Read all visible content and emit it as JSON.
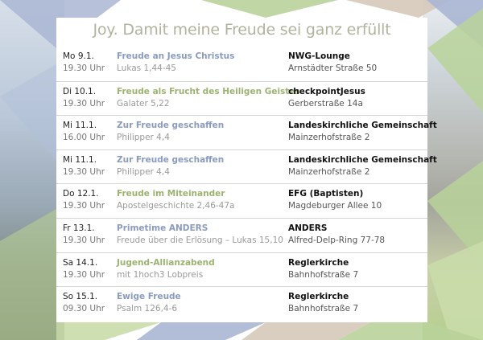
{
  "title": "Joy. Damit meine Freude sei ganz erfüllt",
  "colors": {
    "blue": "#8a9bbf",
    "green": "#9bb371",
    "title": "#b1b39e"
  },
  "events": [
    {
      "day": "Mo 9.1.",
      "time": "19.30 Uhr",
      "topic": "Freude an Jesus Christus",
      "ref": "Lukas 1,44-45",
      "color": "blue",
      "venue": "NWG-Lounge",
      "address": "Arnstädter Straße 50"
    },
    {
      "day": "Di 10.1.",
      "time": "19.30 Uhr",
      "topic": "Freude als Frucht des Heiligen Geistes",
      "ref": "Galater 5,22",
      "color": "green",
      "venue": "checkpointJesus",
      "address": "Gerberstraße 14a"
    },
    {
      "day": "Mi 11.1.",
      "time": "16.00 Uhr",
      "topic": "Zur Freude geschaffen",
      "ref": "Philipper 4,4",
      "color": "blue",
      "venue": "Landeskirchliche Gemeinschaft",
      "address": "Mainzerhofstraße 2"
    },
    {
      "day": "Mi 11.1.",
      "time": "19.30 Uhr",
      "topic": "Zur Freude geschaffen",
      "ref": "Philipper 4,4",
      "color": "blue",
      "venue": "Landeskirchliche Gemeinschaft",
      "address": "Mainzerhofstraße 2"
    },
    {
      "day": "Do 12.1.",
      "time": "19.30 Uhr",
      "topic": "Freude im Miteinander",
      "ref": "Apostelgeschichte 2,46-47a",
      "color": "green",
      "venue": "EFG (Baptisten)",
      "address": "Magdeburger Allee 10"
    },
    {
      "day": "Fr 13.1.",
      "time": "19.30 Uhr",
      "topic": "Primetime ANDERS",
      "ref": "Freude über die Erlösung – Lukas 15,10",
      "color": "blue",
      "venue": "ANDERS",
      "address": "Alfred-Delp-Ring 77-78"
    },
    {
      "day": "Sa 14.1.",
      "time": "19.30 Uhr",
      "topic": "Jugend-Allianzabend",
      "ref": "mit 1hoch3 Lobpreis",
      "color": "green",
      "venue": "Reglerkirche",
      "address": "Bahnhofstraße 7"
    },
    {
      "day": "So 15.1.",
      "time": "09.30 Uhr",
      "topic": "Ewige Freude",
      "ref": "Psalm 126,4-6",
      "color": "blue",
      "venue": "Reglerkirche",
      "address": "Bahnhofstraße 7"
    }
  ]
}
